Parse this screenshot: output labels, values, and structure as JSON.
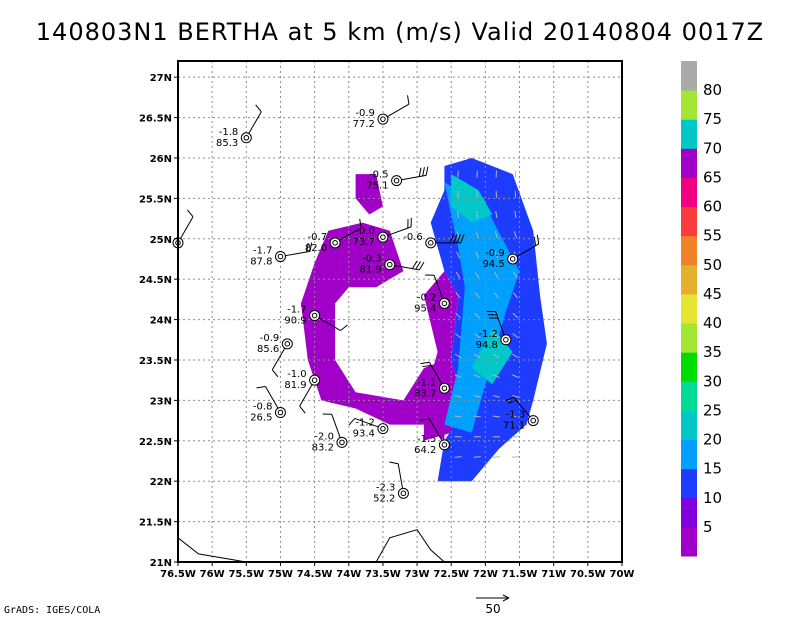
{
  "chart_data": {
    "type": "heatmap",
    "title": "140803N1  BERTHA at 5 km (m/s) Valid 20140804  0017Z",
    "xlim": [
      -76.5,
      -70.0
    ],
    "ylim": [
      21.0,
      27.2
    ],
    "xticks": [
      -76.5,
      -76,
      -75.5,
      -75,
      -74.5,
      -74,
      -73.5,
      -73,
      -72.5,
      -72,
      -71.5,
      -71,
      -70.5,
      -70
    ],
    "xtick_labels": [
      "76.5W",
      "76W",
      "75.5W",
      "75W",
      "74.5W",
      "74W",
      "73.5W",
      "73W",
      "72.5W",
      "72W",
      "71.5W",
      "71W",
      "70.5W",
      "70W"
    ],
    "yticks": [
      21,
      21.5,
      22,
      22.5,
      23,
      23.5,
      24,
      24.5,
      25,
      25.5,
      26,
      26.5,
      27
    ],
    "ytick_labels": [
      "21N",
      "21.5N",
      "22N",
      "22.5N",
      "23N",
      "23.5N",
      "24N",
      "24.5N",
      "25N",
      "25.5N",
      "26N",
      "26.5N",
      "27N"
    ],
    "grid": true,
    "colorbar": {
      "levels": [
        5,
        10,
        15,
        20,
        25,
        30,
        35,
        40,
        45,
        50,
        55,
        60,
        65,
        70,
        75,
        80
      ],
      "labels": [
        "5",
        "10",
        "15",
        "20",
        "25",
        "30",
        "35",
        "40",
        "45",
        "50",
        "55",
        "60",
        "65",
        "70",
        "75",
        "80"
      ],
      "colors": [
        "#a000c8",
        "#8200dc",
        "#1e3cff",
        "#00a0ff",
        "#00c8c8",
        "#00dc96",
        "#00dc00",
        "#a0e632",
        "#e6e632",
        "#e6af2d",
        "#f08228",
        "#fa3c3c",
        "#f00082",
        "#a000c8",
        "#00c8c8",
        "#a0e632",
        "#aaaaaa"
      ]
    },
    "regions": [
      {
        "name": "west-band",
        "color": "#a000c8",
        "polygon": [
          [
            -74.5,
            24.7
          ],
          [
            -74.3,
            25.1
          ],
          [
            -73.8,
            25.2
          ],
          [
            -73.4,
            25.1
          ],
          [
            -73.2,
            24.6
          ],
          [
            -73.6,
            24.4
          ],
          [
            -74.0,
            24.4
          ],
          [
            -74.2,
            24.2
          ],
          [
            -74.2,
            23.5
          ],
          [
            -73.9,
            23.1
          ],
          [
            -73.2,
            23.0
          ],
          [
            -72.9,
            23.4
          ],
          [
            -72.6,
            23.5
          ],
          [
            -72.6,
            22.5
          ],
          [
            -72.9,
            22.7
          ],
          [
            -73.4,
            22.7
          ],
          [
            -73.9,
            22.9
          ],
          [
            -74.4,
            23.0
          ],
          [
            -74.6,
            23.5
          ],
          [
            -74.7,
            24.2
          ]
        ]
      },
      {
        "name": "east-band-inner",
        "color": "#a000c8",
        "polygon": [
          [
            -72.9,
            24.3
          ],
          [
            -72.6,
            24.6
          ],
          [
            -72.4,
            24.3
          ],
          [
            -72.5,
            23.5
          ],
          [
            -72.3,
            22.9
          ],
          [
            -72.5,
            22.6
          ],
          [
            -72.9,
            22.5
          ],
          [
            -72.9,
            23.0
          ],
          [
            -72.7,
            23.6
          ]
        ]
      },
      {
        "name": "east-band-blue",
        "color": "#1e3cff",
        "polygon": [
          [
            -72.6,
            25.9
          ],
          [
            -72.2,
            26.0
          ],
          [
            -71.6,
            25.8
          ],
          [
            -71.3,
            25.1
          ],
          [
            -71.2,
            24.3
          ],
          [
            -71.1,
            23.7
          ],
          [
            -71.3,
            23.0
          ],
          [
            -71.4,
            22.7
          ],
          [
            -71.8,
            22.4
          ],
          [
            -72.2,
            22.0
          ],
          [
            -72.7,
            22.0
          ],
          [
            -72.6,
            22.5
          ],
          [
            -72.3,
            22.9
          ],
          [
            -72.5,
            23.5
          ],
          [
            -72.4,
            24.3
          ],
          [
            -72.6,
            24.6
          ],
          [
            -72.8,
            25.2
          ],
          [
            -72.6,
            25.6
          ]
        ]
      },
      {
        "name": "east-band-cyan",
        "color": "#00a0ff",
        "polygon": [
          [
            -72.6,
            25.7
          ],
          [
            -72.0,
            25.4
          ],
          [
            -71.5,
            24.6
          ],
          [
            -71.7,
            24.1
          ],
          [
            -72.0,
            23.2
          ],
          [
            -72.2,
            22.6
          ],
          [
            -72.6,
            22.7
          ],
          [
            -72.4,
            23.4
          ],
          [
            -72.3,
            24.4
          ],
          [
            -72.4,
            24.9
          ]
        ]
      },
      {
        "name": "east-band-teal",
        "color": "#00c8c8",
        "polygon": [
          [
            -72.5,
            25.8
          ],
          [
            -72.1,
            25.6
          ],
          [
            -71.9,
            25.3
          ],
          [
            -72.2,
            25.2
          ],
          [
            -72.5,
            25.4
          ]
        ]
      },
      {
        "name": "east-band-teal-2",
        "color": "#00c8c8",
        "polygon": [
          [
            -71.9,
            23.9
          ],
          [
            -71.6,
            23.6
          ],
          [
            -71.9,
            23.2
          ],
          [
            -72.2,
            23.4
          ]
        ]
      },
      {
        "name": "north-patch",
        "color": "#a000c8",
        "polygon": [
          [
            -73.9,
            25.8
          ],
          [
            -73.6,
            25.8
          ],
          [
            -73.5,
            25.4
          ],
          [
            -73.7,
            25.3
          ],
          [
            -73.9,
            25.5
          ]
        ]
      }
    ],
    "observations": [
      {
        "lon": -75.5,
        "lat": 26.25,
        "v1": "-1.8",
        "v2": "85.3",
        "dir": 150,
        "flags": 1
      },
      {
        "lon": -73.5,
        "lat": 26.48,
        "v1": "-0.9",
        "v2": "77.2",
        "dir": 120,
        "flags": 1
      },
      {
        "lon": -73.3,
        "lat": 25.72,
        "v1": "-0.5",
        "v2": "75.1",
        "dir": 100,
        "flags": 3
      },
      {
        "lon": -76.5,
        "lat": 24.95,
        "v1": "",
        "v2": "",
        "dir": 150,
        "flags": 1
      },
      {
        "lon": -75.0,
        "lat": 24.78,
        "v1": "-1.7",
        "v2": "87.8",
        "dir": 100,
        "flags": 2
      },
      {
        "lon": -74.2,
        "lat": 24.95,
        "v1": "-0.7",
        "v2": "82.0",
        "dir": 120,
        "flags": 1
      },
      {
        "lon": -73.5,
        "lat": 25.02,
        "v1": "-0.0",
        "v2": "73.7",
        "dir": 110,
        "flags": 2
      },
      {
        "lon": -73.4,
        "lat": 24.68,
        "v1": "-0.3",
        "v2": "81.9",
        "dir": 80,
        "flags": 3
      },
      {
        "lon": -72.8,
        "lat": 24.95,
        "v1": "-0.6",
        "v2": "",
        "dir": 90,
        "flags": 4
      },
      {
        "lon": -71.6,
        "lat": 24.75,
        "v1": "-0.9",
        "v2": "94.5",
        "dir": 120,
        "flags": 2
      },
      {
        "lon": -74.5,
        "lat": 24.05,
        "v1": "-1.7",
        "v2": "90.9",
        "dir": 60,
        "flags": 1
      },
      {
        "lon": -72.6,
        "lat": 24.2,
        "v1": "-0.2",
        "v2": "95.4",
        "dir": 200,
        "flags": 1
      },
      {
        "lon": -71.7,
        "lat": 23.75,
        "v1": "-1.2",
        "v2": "94.8",
        "dir": 200,
        "flags": 3
      },
      {
        "lon": -74.9,
        "lat": 23.7,
        "v1": "-0.9",
        "v2": "85.6",
        "dir": 330,
        "flags": 1
      },
      {
        "lon": -74.5,
        "lat": 23.25,
        "v1": "-1.0",
        "v2": "81.9",
        "dir": 330,
        "flags": 1
      },
      {
        "lon": -72.6,
        "lat": 23.15,
        "v1": "-1.1",
        "v2": "83.7",
        "dir": 210,
        "flags": 2
      },
      {
        "lon": -75.0,
        "lat": 22.85,
        "v1": "-0.8",
        "v2": "26.5",
        "dir": 210,
        "flags": 1
      },
      {
        "lon": -73.5,
        "lat": 22.65,
        "v1": "-1.2",
        "v2": "93.4",
        "dir": 250,
        "flags": 1
      },
      {
        "lon": -74.1,
        "lat": 22.48,
        "v1": "-2.0",
        "v2": "83.2",
        "dir": 200,
        "flags": 1
      },
      {
        "lon": -72.6,
        "lat": 22.45,
        "v1": "-1.5",
        "v2": "64.2",
        "dir": 210,
        "flags": 1
      },
      {
        "lon": -71.3,
        "lat": 22.75,
        "v1": "-1.3",
        "v2": "71.1",
        "dir": 220,
        "flags": 2
      },
      {
        "lon": -73.2,
        "lat": 21.85,
        "v1": "-2.3",
        "v2": "52.2",
        "dir": 190,
        "flags": 1
      }
    ],
    "coastline": [
      {
        "points": [
          [
            -76.5,
            21.3
          ],
          [
            -76.2,
            21.1
          ],
          [
            -75.5,
            21.0
          ]
        ]
      },
      {
        "points": [
          [
            -73.6,
            21.0
          ],
          [
            -73.4,
            21.3
          ],
          [
            -73.0,
            21.4
          ],
          [
            -72.8,
            21.15
          ],
          [
            -72.6,
            21.0
          ]
        ]
      }
    ],
    "scale_arrow": {
      "label": "50"
    }
  },
  "footer": {
    "credit": "GrADS: IGES/COLA"
  }
}
